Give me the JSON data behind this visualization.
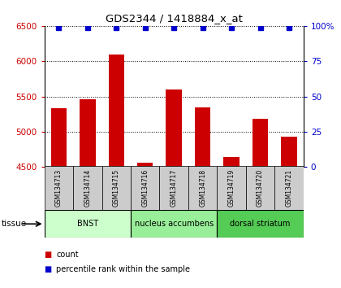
{
  "title": "GDS2344 / 1418884_x_at",
  "samples": [
    "GSM134713",
    "GSM134714",
    "GSM134715",
    "GSM134716",
    "GSM134717",
    "GSM134718",
    "GSM134719",
    "GSM134720",
    "GSM134721"
  ],
  "counts": [
    5330,
    5460,
    6090,
    4560,
    5600,
    5350,
    4640,
    5180,
    4930
  ],
  "percentile_values": [
    99,
    99,
    99,
    99,
    99,
    99,
    99,
    99,
    99
  ],
  "ylim_left": [
    4500,
    6500
  ],
  "ylim_right": [
    0,
    100
  ],
  "yticks_left": [
    4500,
    5000,
    5500,
    6000,
    6500
  ],
  "yticks_right": [
    0,
    25,
    50,
    75,
    100
  ],
  "bar_color": "#cc0000",
  "dot_color": "#0000cc",
  "tissue_groups": [
    {
      "label": "BNST",
      "start": 0,
      "end": 2,
      "color": "#ccffcc"
    },
    {
      "label": "nucleus accumbens",
      "start": 3,
      "end": 5,
      "color": "#99ee99"
    },
    {
      "label": "dorsal striatum",
      "start": 6,
      "end": 8,
      "color": "#55cc55"
    }
  ],
  "legend_count_label": "count",
  "legend_pct_label": "percentile rank within the sample",
  "tissue_label": "tissue",
  "bar_width": 0.55,
  "background_color": "#ffffff",
  "grid_color": "#000000",
  "sample_bg": "#cccccc"
}
